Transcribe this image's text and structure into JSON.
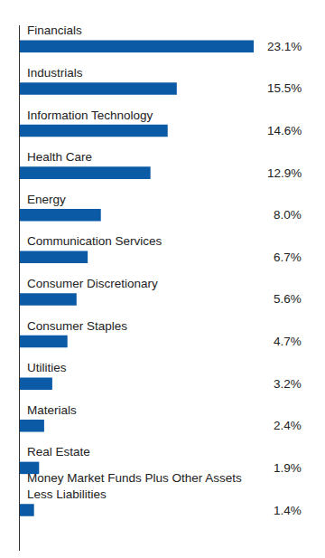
{
  "chart_data": {
    "type": "bar",
    "orientation": "horizontal",
    "categories": [
      "Financials",
      "Industrials",
      "Information Technology",
      "Health Care",
      "Energy",
      "Communication Services",
      "Consumer Discretionary",
      "Consumer Staples",
      "Utilities",
      "Materials",
      "Real Estate",
      "Money Market Funds Plus Other Assets Less Liabilities"
    ],
    "values": [
      23.1,
      15.5,
      14.6,
      12.9,
      8.0,
      6.7,
      5.6,
      4.7,
      3.2,
      2.4,
      1.9,
      1.4
    ],
    "value_labels": [
      "23.1%",
      "15.5%",
      "14.6%",
      "12.9%",
      "8.0%",
      "6.7%",
      "5.6%",
      "4.7%",
      "3.2%",
      "2.4%",
      "1.9%",
      "1.4%"
    ],
    "data_labels": true,
    "color": "#0b5aa6",
    "xlim": [
      0,
      28
    ],
    "tick_labels": false,
    "grid": false
  }
}
